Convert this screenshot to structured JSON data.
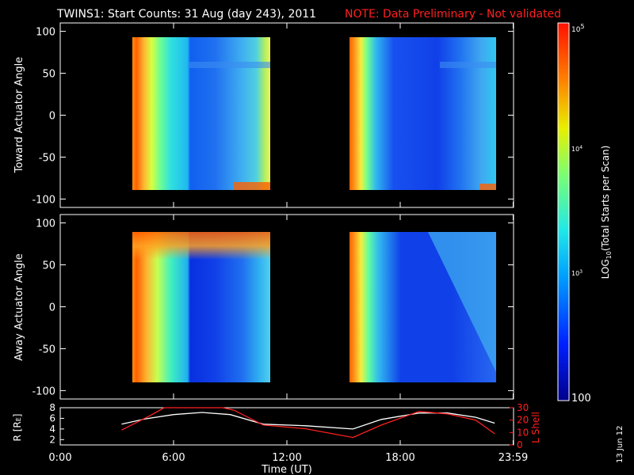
{
  "title": "TWINS1: Start Counts: 31 Aug (day 243), 2011",
  "note": "NOTE: Data Preliminary - Not validated",
  "date_stamp": "13 Jun 12",
  "colors": {
    "background": "#000000",
    "axes": "#ffffff",
    "note": "#ff2020",
    "lshell": "#ff2020",
    "radius": "#ffffff"
  },
  "chart_data": [
    {
      "type": "heatmap",
      "ylabel": "Toward Actuator Angle",
      "ylim": [
        -110,
        110
      ],
      "yticks": [
        100,
        50,
        0,
        -50,
        -100
      ],
      "xlim": [
        0,
        24
      ],
      "data_angle_range": [
        -88,
        90
      ],
      "data_segments_hours": [
        [
          3.25,
          10.75
        ],
        [
          15.5,
          23.0
        ]
      ]
    },
    {
      "type": "heatmap",
      "ylabel": "Away Actuator Angle",
      "ylim": [
        -110,
        110
      ],
      "yticks": [
        100,
        50,
        0,
        -50,
        -100
      ],
      "xlim": [
        0,
        24
      ],
      "data_angle_range": [
        -88,
        90
      ],
      "data_segments_hours": [
        [
          3.25,
          10.75
        ],
        [
          15.5,
          23.0
        ]
      ]
    },
    {
      "type": "line",
      "ylabel_left": "R [R",
      "ylabel_left_sub": "E",
      "ylabel_left_close": "]",
      "ylim_left": [
        1,
        8
      ],
      "yticks_left": [
        8,
        6,
        4,
        2
      ],
      "ylabel_right": "L Shell",
      "ylim_right": [
        0,
        30
      ],
      "yticks_right": [
        30,
        20,
        10,
        0
      ],
      "xlabel": "Time (UT)",
      "xlim": [
        0,
        24
      ],
      "xticks": [
        "0:00",
        "6:00",
        "12:00",
        "18:00",
        "23:59"
      ],
      "xtick_values": [
        0,
        6,
        12,
        18,
        23.98
      ],
      "series": [
        {
          "axis": "left",
          "color": "#ffffff",
          "x": [
            3.25,
            4.5,
            6,
            7.5,
            9,
            10.75,
            13,
            15.5,
            17,
            19,
            20.5,
            22,
            23
          ],
          "y": [
            4.9,
            5.9,
            6.7,
            7.1,
            6.7,
            4.9,
            4.6,
            4.0,
            5.8,
            7.0,
            7.0,
            6.2,
            5.1
          ]
        },
        {
          "axis": "right",
          "color": "#ff2020",
          "x": [
            3.25,
            4.8,
            5.5,
            8.6,
            9.2,
            10.75,
            13,
            15.5,
            17,
            19,
            20.5,
            22,
            23
          ],
          "y": [
            12,
            24,
            30,
            30,
            28,
            16,
            13,
            6,
            16,
            27,
            25,
            20,
            9
          ]
        }
      ]
    }
  ],
  "colorbar": {
    "label_main": "LOG",
    "label_sub": "10",
    "label_rest": "(Total Starts per Scan)",
    "tick_top_base": "10",
    "tick_top_exp": "5",
    "tick_mid_base": "10",
    "tick_mid_exp": "4",
    "tick_low_base": "10",
    "tick_low_exp": "3",
    "tick_bottom": "100",
    "range_log": [
      2,
      5
    ]
  }
}
